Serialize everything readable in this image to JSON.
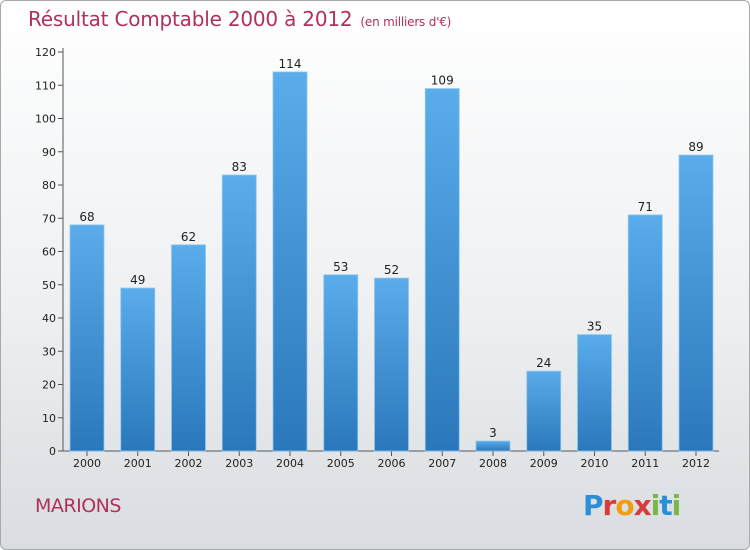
{
  "header": {
    "title": "Résultat Comptable 2000 à 2012",
    "subtitle": "(en milliers d'€)"
  },
  "commune": "MARIONS",
  "logo": {
    "text": "Proxiti",
    "colors": [
      "#2b8fd6",
      "#f39c12",
      "#d63c3c",
      "#7ab648"
    ]
  },
  "colors": {
    "bar_top": "#5aaceb",
    "bar_bottom": "#2a78bb",
    "title": "#b0315a"
  },
  "chart_data": {
    "type": "bar",
    "title": "Résultat Comptable 2000 à 2012 (en milliers d'€)",
    "xlabel": "",
    "ylabel": "",
    "categories": [
      "2000",
      "2001",
      "2002",
      "2003",
      "2004",
      "2005",
      "2006",
      "2007",
      "2008",
      "2009",
      "2010",
      "2011",
      "2012"
    ],
    "values": [
      68,
      49,
      62,
      83,
      114,
      53,
      52,
      109,
      3,
      24,
      35,
      71,
      89
    ],
    "ylim": [
      0,
      120
    ],
    "yticks": [
      0,
      10,
      20,
      30,
      40,
      50,
      60,
      70,
      80,
      90,
      100,
      110,
      120
    ],
    "grid": false
  }
}
